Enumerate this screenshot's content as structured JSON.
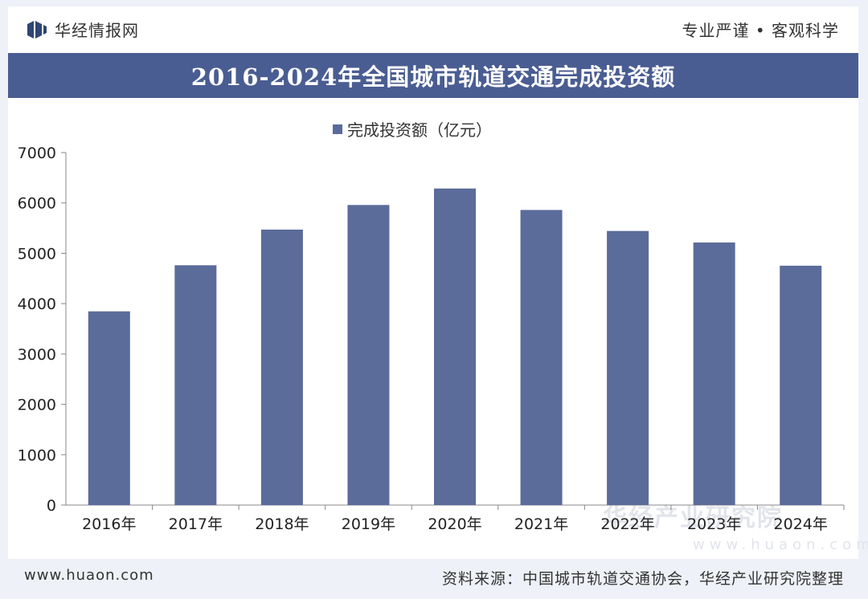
{
  "header": {
    "brand_name": "华经情报网",
    "slogan": "专业严谨 • 客观科学"
  },
  "title": "2016-2024年全国城市轨道交通完成投资额",
  "footer": {
    "website": "www.huaon.com",
    "source": "资料来源：中国城市轨道交通协会，华经产业研究院整理"
  },
  "watermark": {
    "text": "华经产业研究院",
    "url": "www.huaon.com"
  },
  "colors": {
    "bar": "#5b6b9a",
    "title_bar": "#4a5d92"
  },
  "chart_data": {
    "type": "bar",
    "title": "2016-2024年全国城市轨道交通完成投资额",
    "categories": [
      "2016年",
      "2017年",
      "2018年",
      "2019年",
      "2020年",
      "2021年",
      "2022年",
      "2023年",
      "2024年"
    ],
    "series": [
      {
        "name": "完成投资额（亿元）",
        "values": [
          3847,
          4762,
          5470,
          5959,
          6286,
          5860,
          5443,
          5214,
          4753
        ]
      }
    ],
    "ylim": [
      0,
      7000
    ],
    "yticks": [
      0,
      1000,
      2000,
      3000,
      4000,
      5000,
      6000,
      7000
    ],
    "grid": false,
    "legend": "top-center"
  }
}
